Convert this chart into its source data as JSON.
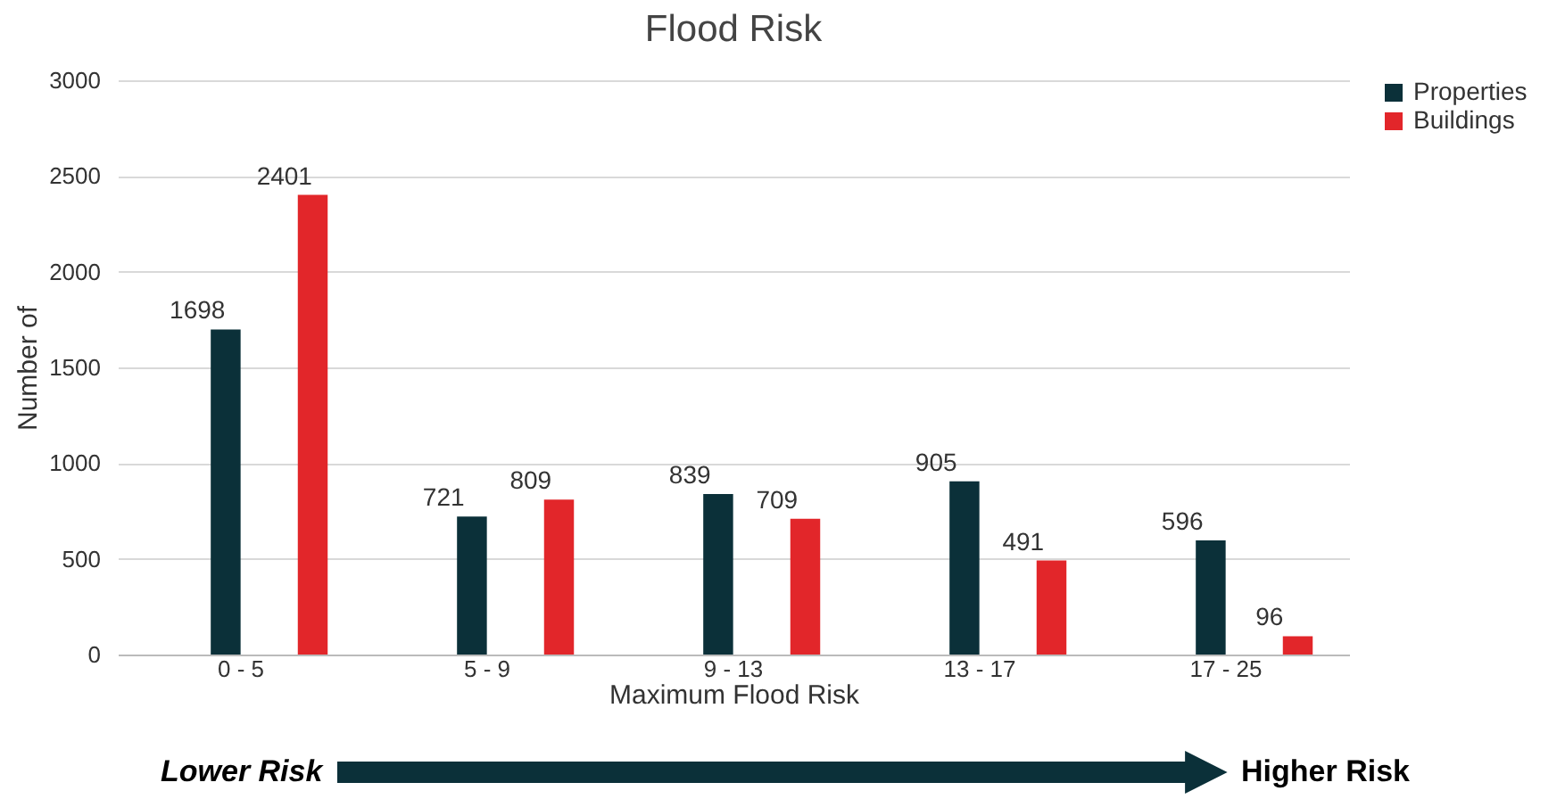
{
  "chart_data": {
    "type": "bar",
    "title": "Flood Risk",
    "xlabel": "Maximum Flood Risk",
    "ylabel": "Number of",
    "categories": [
      "0 - 5",
      "5 - 9",
      "9 - 13",
      "13 - 17",
      "17 - 25"
    ],
    "series": [
      {
        "name": "Properties",
        "color": "#0b3039",
        "values": [
          1698,
          721,
          839,
          905,
          596
        ]
      },
      {
        "name": "Buildings",
        "color": "#e2262a",
        "values": [
          2401,
          809,
          709,
          491,
          96
        ]
      }
    ],
    "ylim": [
      0,
      3000
    ],
    "yticks": [
      0,
      500,
      1000,
      1500,
      2000,
      2500,
      3000
    ],
    "grid": "y",
    "legend": "right",
    "data_labels": true,
    "annotations": [
      "Lower Risk",
      "Higher Risk"
    ]
  }
}
